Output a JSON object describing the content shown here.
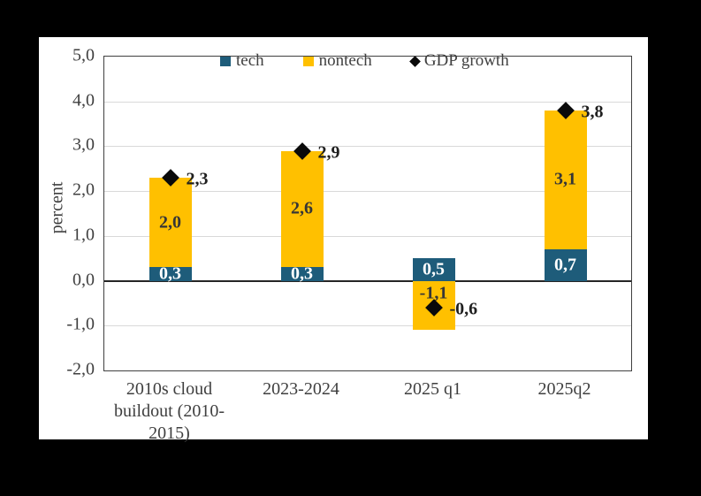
{
  "figure": {
    "outer_background": "#000000",
    "panel_background": "#ffffff"
  },
  "colors": {
    "tech_bar": "#1e5c7a",
    "nontech_bar": "#ffc000",
    "gdp_marker": "#0a0a0a",
    "axis_text": "#3f3f3f",
    "gridline": "#d9d9d9",
    "zero_line": "#262626",
    "plot_border": "#404040",
    "bar_label_on_blue": "#ffffff",
    "bar_label_on_yellow": "#363636",
    "marker_label": "#1f1f1f"
  },
  "legend": {
    "items": [
      {
        "label": "tech",
        "swatch": "square",
        "color": "#1e5c7a"
      },
      {
        "label": "nontech",
        "swatch": "square",
        "color": "#ffc000"
      },
      {
        "label": "GDP growth",
        "swatch": "diamond",
        "color": "#0a0a0a"
      }
    ]
  },
  "chart_data": {
    "type": "bar",
    "subtype": "stacked-columns-with-diamond-scatter-markers",
    "title": "",
    "xlabel": "",
    "ylabel": "percent",
    "ylim": [
      -2,
      5
    ],
    "grid": true,
    "legend_position": "top-inside",
    "decimal_separator": ",",
    "categories": [
      "2010s cloud buildout (2010-2015)",
      "2023-2024",
      "2025 q1",
      "2025q2"
    ],
    "categories_display": [
      [
        "2010s cloud",
        "buildout (2010-",
        "2015)"
      ],
      [
        "2023-2024"
      ],
      [
        "2025 q1"
      ],
      [
        "2025q2"
      ]
    ],
    "y_ticks": [
      5,
      4,
      3,
      2,
      1,
      0,
      -1,
      -2
    ],
    "y_tick_labels": [
      "5,0",
      "4,0",
      "3,0",
      "2,0",
      "1,0",
      "0,0",
      "-1,0",
      "-2,0"
    ],
    "gridline_values": [
      4,
      3,
      2,
      1,
      -1
    ],
    "series": [
      {
        "name": "tech",
        "type": "bar",
        "color": "#1e5c7a",
        "values": [
          0.3,
          0.3,
          0.5,
          0.7
        ],
        "labels": [
          "0,3",
          "0,3",
          "0,5",
          "0,7"
        ],
        "label_color": "#ffffff"
      },
      {
        "name": "nontech",
        "type": "bar",
        "color": "#ffc000",
        "values": [
          2.0,
          2.6,
          -1.1,
          3.1
        ],
        "labels": [
          "2,0",
          "2,6",
          "-1,1",
          "3,1"
        ],
        "label_color": "#363636"
      },
      {
        "name": "GDP growth",
        "type": "scatter",
        "marker": "diamond",
        "color": "#0a0a0a",
        "values": [
          2.3,
          2.9,
          -0.6,
          3.8
        ],
        "labels": [
          "2,3",
          "2,9",
          "-0,6",
          "3,8"
        ],
        "label_color": "#1f1f1f"
      }
    ]
  }
}
